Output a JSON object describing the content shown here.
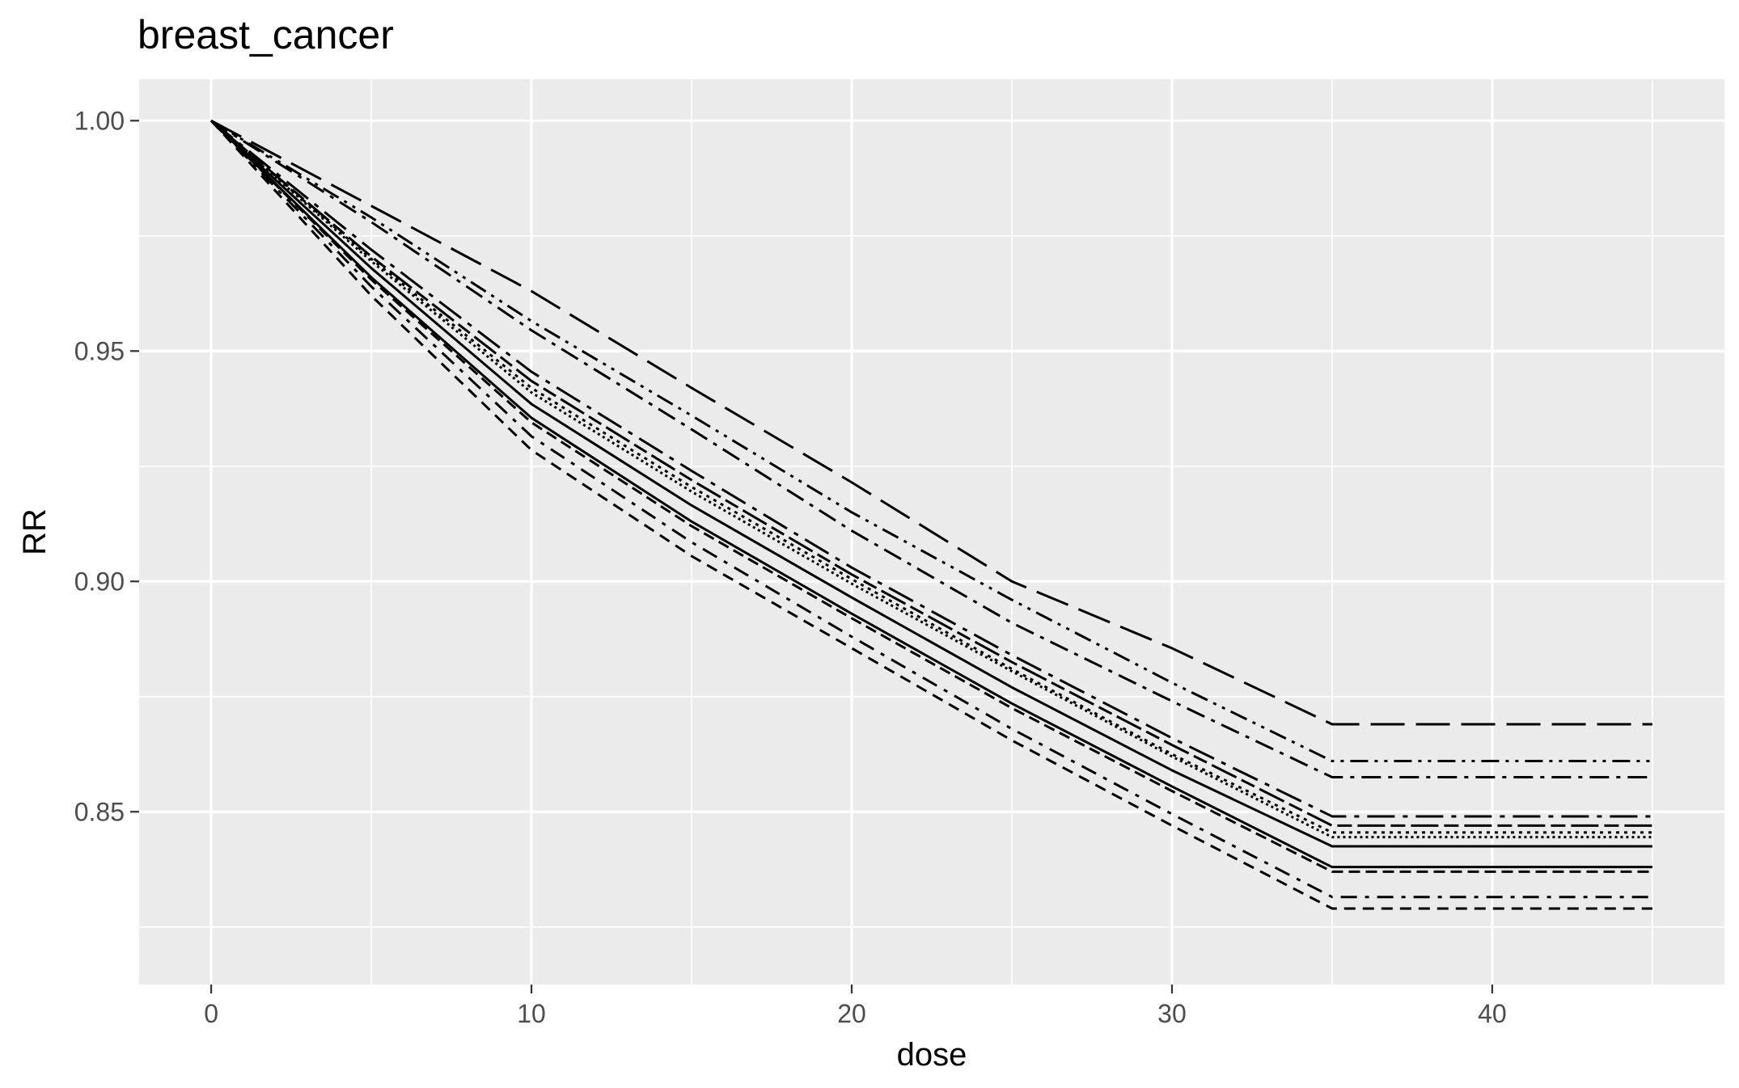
{
  "chart_data": {
    "type": "line",
    "title": "breast_cancer",
    "xlabel": "dose",
    "ylabel": "RR",
    "xlim": [
      -2.25,
      47.25
    ],
    "ylim": [
      0.8125,
      1.009
    ],
    "x_ticks": [
      0,
      10,
      20,
      30,
      40
    ],
    "x_tick_labels": [
      "0",
      "10",
      "20",
      "30",
      "40"
    ],
    "y_ticks": [
      0.85,
      0.9,
      0.95,
      1.0
    ],
    "y_tick_labels": [
      "0.85",
      "0.90",
      "0.95",
      "1.00"
    ],
    "grid": true,
    "panel_background": "#ebebeb",
    "line_color": "#000000",
    "legend": "none",
    "x": [
      0,
      5,
      10,
      15,
      20,
      25,
      30,
      35,
      45
    ],
    "series": [
      {
        "linetype": "longdash",
        "values": [
          1.0,
          0.9815,
          0.963,
          0.942,
          0.9215,
          0.9,
          0.8855,
          0.869,
          0.869
        ]
      },
      {
        "linetype": "dotdash-dense",
        "values": [
          1.0,
          0.979,
          0.9565,
          0.936,
          0.915,
          0.896,
          0.878,
          0.861,
          0.861
        ]
      },
      {
        "linetype": "dashdot",
        "values": [
          1.0,
          0.978,
          0.9545,
          0.933,
          0.911,
          0.891,
          0.874,
          0.8575,
          0.8575
        ]
      },
      {
        "linetype": "longdash-dot",
        "values": [
          1.0,
          0.972,
          0.9455,
          0.924,
          0.903,
          0.884,
          0.866,
          0.849,
          0.849
        ]
      },
      {
        "linetype": "twodash",
        "values": [
          1.0,
          0.9705,
          0.9435,
          0.922,
          0.9015,
          0.8825,
          0.8645,
          0.847,
          0.847
        ]
      },
      {
        "linetype": "dotted",
        "values": [
          1.0,
          0.97,
          0.942,
          0.9205,
          0.9005,
          0.881,
          0.8625,
          0.8455,
          0.8455
        ]
      },
      {
        "linetype": "dotted-fine",
        "values": [
          1.0,
          0.9695,
          0.941,
          0.9195,
          0.8995,
          0.8805,
          0.862,
          0.8445,
          0.8445
        ]
      },
      {
        "linetype": "solid",
        "values": [
          1.0,
          0.968,
          0.9385,
          0.9165,
          0.8965,
          0.877,
          0.859,
          0.8425,
          0.8425
        ]
      },
      {
        "linetype": "solid-heavy",
        "values": [
          1.0,
          0.966,
          0.9355,
          0.913,
          0.893,
          0.8735,
          0.8555,
          0.838,
          0.838
        ]
      },
      {
        "linetype": "dashed-heavy",
        "values": [
          1.0,
          0.9655,
          0.9345,
          0.912,
          0.892,
          0.8725,
          0.8545,
          0.837,
          0.837
        ]
      },
      {
        "linetype": "dotdash-low",
        "values": [
          1.0,
          0.964,
          0.9315,
          0.9085,
          0.888,
          0.868,
          0.8495,
          0.8315,
          0.8315
        ]
      },
      {
        "linetype": "dashed",
        "values": [
          1.0,
          0.962,
          0.9285,
          0.9055,
          0.8855,
          0.8655,
          0.847,
          0.829,
          0.829
        ]
      }
    ]
  }
}
